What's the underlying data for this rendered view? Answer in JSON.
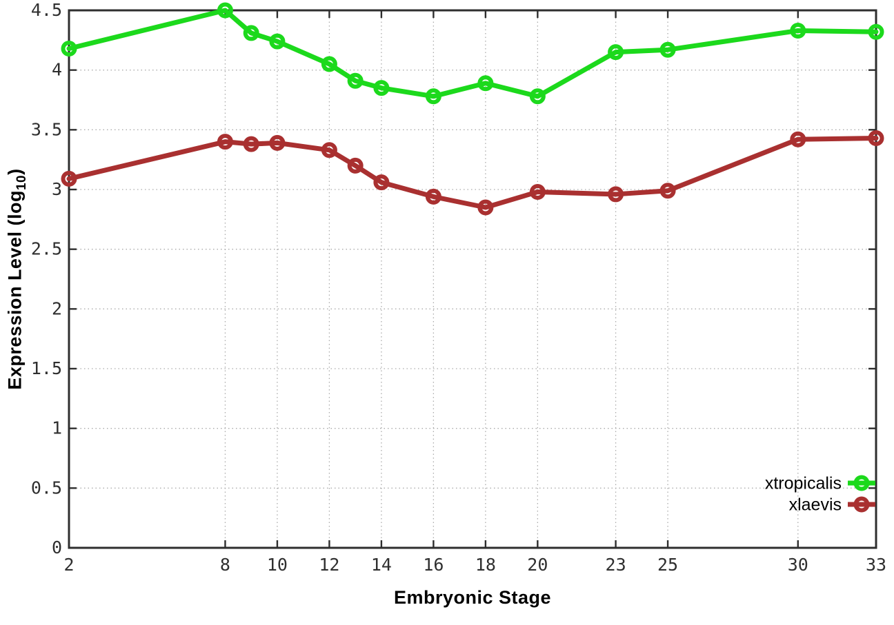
{
  "chart_data": {
    "type": "line",
    "title": "",
    "xlabel": "Embryonic Stage",
    "ylabel": {
      "prefix": "Expression Level (log",
      "sub": "10",
      "suffix": ")"
    },
    "x": [
      2,
      8,
      9,
      10,
      12,
      13,
      14,
      16,
      18,
      20,
      23,
      25,
      30,
      33
    ],
    "series": [
      {
        "name": "xtropicalis",
        "color": "#1cd91c",
        "values": [
          4.18,
          4.5,
          4.31,
          4.24,
          4.05,
          3.91,
          3.85,
          3.78,
          3.89,
          3.78,
          4.15,
          4.17,
          4.33,
          4.32
        ]
      },
      {
        "name": "xlaevis",
        "color": "#a93030",
        "values": [
          3.09,
          3.4,
          3.38,
          3.39,
          3.33,
          3.2,
          3.06,
          2.94,
          2.85,
          2.98,
          2.96,
          2.99,
          3.42,
          3.43
        ]
      }
    ],
    "xlim": [
      2,
      33
    ],
    "ylim": [
      0,
      4.5
    ],
    "xticks": [
      2,
      8,
      10,
      12,
      14,
      16,
      18,
      20,
      23,
      25,
      30,
      33
    ],
    "yticks": [
      0,
      0.5,
      1,
      1.5,
      2,
      2.5,
      3,
      3.5,
      4,
      4.5
    ],
    "grid": true,
    "legend_position": "inside-bottom-right",
    "marker": "open-circle",
    "colors": {
      "grid": "#aaaaaa",
      "axis": "#2e2e2e",
      "tick_label": "#2f2f2f",
      "legend_text": "#000000"
    }
  }
}
